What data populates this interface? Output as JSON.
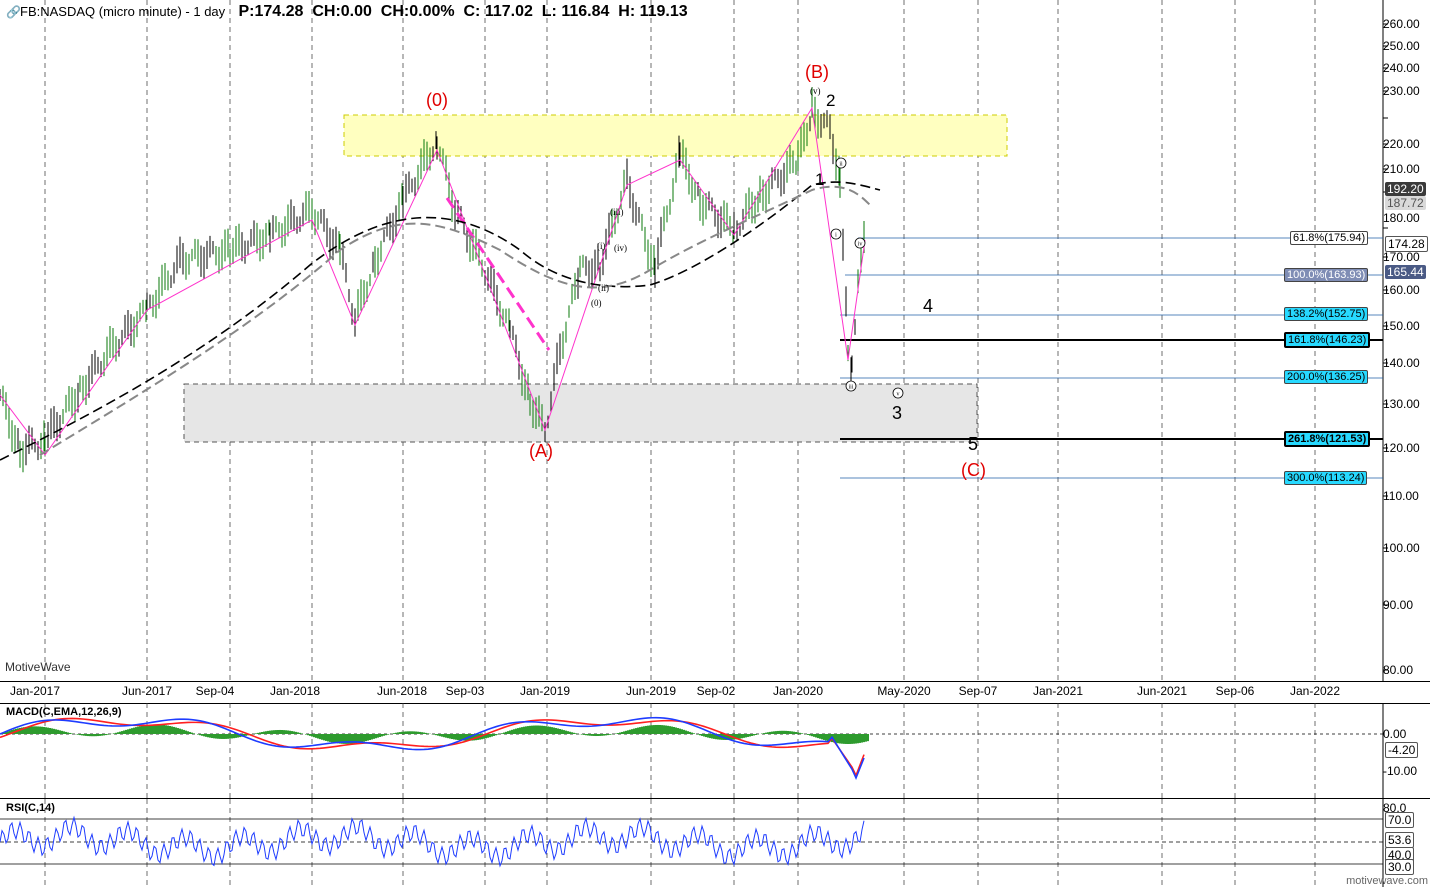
{
  "header": {
    "symbol": "FB:NASDAQ (micro minute) - 1 day",
    "price": "P:174.28",
    "change": "CH:0.00",
    "change_pct": "CH:0.00%",
    "close": "C: 117.02",
    "low": "L: 116.84",
    "high": "H: 119.13"
  },
  "brand": "MotiveWave",
  "footer_brand": "motivewave.com",
  "price_axis": [
    "260.00",
    "250.00",
    "240.00",
    "230.00",
    "220.00",
    "210.00",
    "200.00",
    "190.00",
    "180.00",
    "170.00",
    "160.00",
    "150.00",
    "140.00",
    "130.00",
    "120.00",
    "110.00",
    "100.00",
    "90.00",
    "80.00"
  ],
  "price_tags": {
    "last": "174.28",
    "ma1": "192.20",
    "ma2": "187.72",
    "level": "165.44"
  },
  "time_axis": [
    "Jan-2017",
    "Jun-2017",
    "Sep-04",
    "Jan-2018",
    "Jun-2018",
    "Sep-03",
    "Jan-2019",
    "Jun-2019",
    "Sep-02",
    "Jan-2020",
    "May-2020",
    "Sep-07",
    "Jan-2021",
    "Jun-2021",
    "Sep-06",
    "Jan-2022"
  ],
  "fib_levels": [
    {
      "label": "61.8%(175.94)",
      "style": "white"
    },
    {
      "label": "100.0%(163.93)",
      "style": "gray"
    },
    {
      "label": "138.2%(152.75)",
      "style": "cyan"
    },
    {
      "label": "161.8%(146.23)",
      "style": "cyanbold"
    },
    {
      "label": "200.0%(136.25)",
      "style": "cyan"
    },
    {
      "label": "261.8%(121.53)",
      "style": "cyanbold"
    },
    {
      "label": "300.0%(113.24)",
      "style": "cyan"
    }
  ],
  "wave_labels": {
    "zero": "(0)",
    "a": "(A)",
    "b": "(B)",
    "c": "(C)",
    "one": "1",
    "two": "2",
    "three": "3",
    "four": "4",
    "five": "5",
    "sub_v_top": "(v)",
    "sub_i": "(i)",
    "sub_ii": "(ii)",
    "sub_iii": "(iii)",
    "sub_iv": "(iv)",
    "sub_0": "(0)",
    "circ_i": "i",
    "circ_ii": "ii",
    "circ_iii": "iii",
    "circ_iv": "iv",
    "circ_v": "v"
  },
  "macd": {
    "title": "MACD(C,EMA,12,26,9)",
    "axis": [
      "0.00",
      "-10.00"
    ],
    "tag": "-4.20"
  },
  "rsi": {
    "title": "RSI(C,14)",
    "axis": [
      "80.0",
      "70.0",
      "53.6",
      "40.0",
      "30.0"
    ]
  },
  "colors": {
    "candle_up": "#0a7a0a",
    "candle_down": "#000000",
    "fib_line": "#1f5fa8",
    "magenta": "#ff33cc",
    "resistance_box": "#ffffc0",
    "support_box": "#e6e6e6",
    "wave_red": "#e00000",
    "macd_line": "#1e3cff",
    "signal_line": "#ff2020",
    "hist": "#2e9b2e",
    "rsi_line": "#1e3cff"
  }
}
